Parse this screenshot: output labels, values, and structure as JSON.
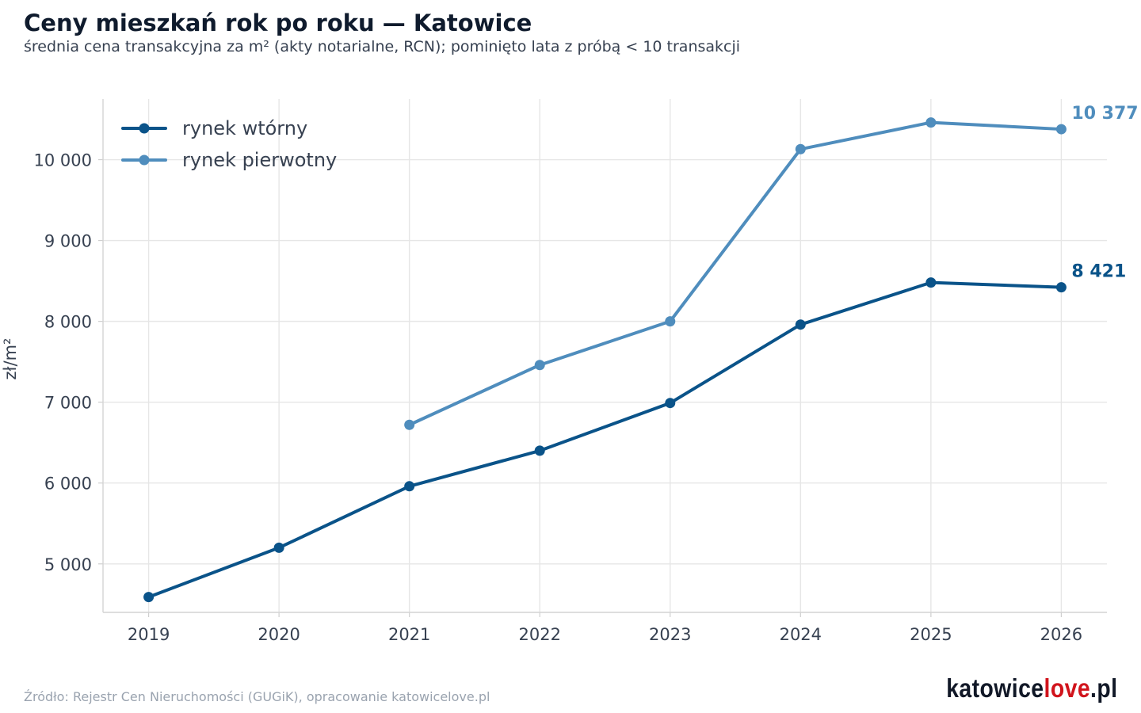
{
  "title": "Ceny mieszkań rok po roku — Katowice",
  "subtitle": "średnia cena transakcyjna za m² (akty notarialne, RCN); pominięto lata z próbą < 10 transakcji",
  "source": "Źródło: Rejestr Cen Nieruchomości (GUGiK), opracowanie katowicelove.pl",
  "logo": {
    "part1": "katowice",
    "part2": "love",
    "part3": ".pl",
    "accent_color": "#d1141c"
  },
  "chart_data": {
    "type": "line",
    "ylabel": "zł/m²",
    "x": [
      2019,
      2020,
      2021,
      2022,
      2023,
      2024,
      2025,
      2026
    ],
    "xticks": [
      "2019",
      "2020",
      "2021",
      "2022",
      "2023",
      "2024",
      "2025",
      "2026"
    ],
    "yticks": [
      5000,
      6000,
      7000,
      8000,
      9000,
      10000
    ],
    "ytick_labels": [
      "5 000",
      "6 000",
      "7 000",
      "8 000",
      "9 000",
      "10 000"
    ],
    "ylim": [
      4400,
      10750
    ],
    "xlim": [
      2018.65,
      2026.35
    ],
    "grid": true,
    "legend_position": "top-left",
    "series": [
      {
        "name": "rynek wtórny",
        "color": "#0a5389",
        "values": [
          4590,
          5200,
          5960,
          6400,
          6990,
          7960,
          8480,
          8421
        ],
        "end_label": "8 421"
      },
      {
        "name": "rynek pierwotny",
        "color": "#4f8dbd",
        "values": [
          null,
          null,
          6720,
          7460,
          8000,
          10130,
          10460,
          10377
        ],
        "end_label": "10 377"
      }
    ]
  }
}
